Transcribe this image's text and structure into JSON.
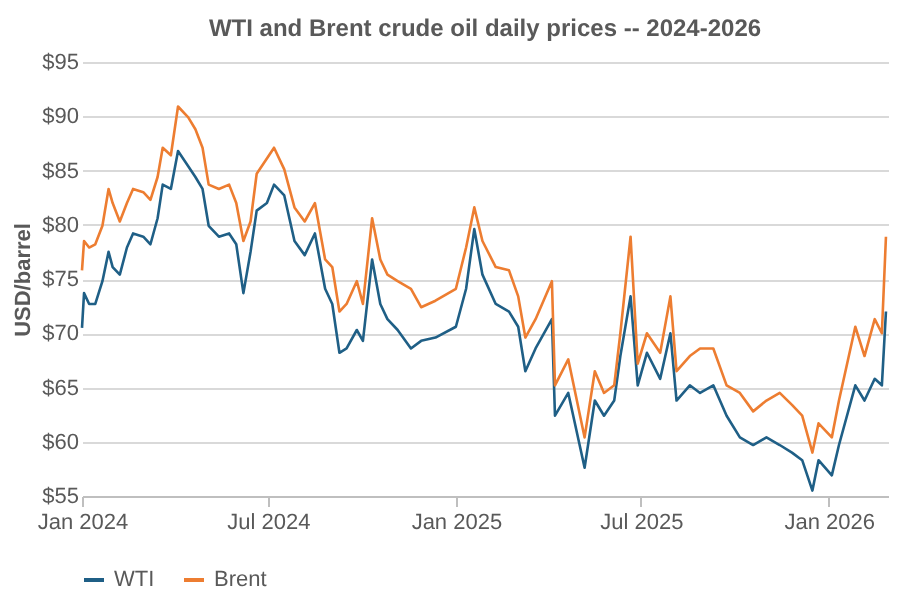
{
  "chart_data": {
    "type": "line",
    "title": "WTI and Brent crude oil daily prices -- 2024-2026",
    "ylabel": "USD/barrel",
    "x": [
      "2024-01-01",
      "2024-01-03",
      "2024-01-08",
      "2024-01-14",
      "2024-01-21",
      "2024-01-27",
      "2024-01-31",
      "2024-02-07",
      "2024-02-14",
      "2024-02-20",
      "2024-03-01",
      "2024-03-08",
      "2024-03-15",
      "2024-03-20",
      "2024-03-28",
      "2024-04-04",
      "2024-04-14",
      "2024-04-21",
      "2024-04-28",
      "2024-05-04",
      "2024-05-14",
      "2024-05-24",
      "2024-05-31",
      "2024-06-07",
      "2024-06-14",
      "2024-06-20",
      "2024-06-30",
      "2024-07-07",
      "2024-07-17",
      "2024-07-27",
      "2024-08-06",
      "2024-08-16",
      "2024-08-26",
      "2024-09-02",
      "2024-09-09",
      "2024-09-16",
      "2024-09-26",
      "2024-10-02",
      "2024-10-11",
      "2024-10-19",
      "2024-10-26",
      "2024-11-05",
      "2024-11-18",
      "2024-11-28",
      "2024-12-12",
      "2025-01-01",
      "2025-01-11",
      "2025-01-19",
      "2025-01-27",
      "2025-02-09",
      "2025-02-22",
      "2025-03-03",
      "2025-03-10",
      "2025-03-20",
      "2025-04-05",
      "2025-04-08",
      "2025-04-21",
      "2025-05-07",
      "2025-05-17",
      "2025-05-26",
      "2025-06-05",
      "2025-06-11",
      "2025-06-21",
      "2025-06-28",
      "2025-07-07",
      "2025-07-20",
      "2025-07-30",
      "2025-08-05",
      "2025-08-18",
      "2025-08-28",
      "2025-09-10",
      "2025-09-23",
      "2025-10-06",
      "2025-10-19",
      "2025-11-01",
      "2025-11-14",
      "2025-11-26",
      "2025-12-06",
      "2025-12-16",
      "2025-12-22",
      "2026-01-04",
      "2026-01-11",
      "2026-01-27",
      "2026-02-05",
      "2026-02-15",
      "2026-02-22",
      "2026-02-26"
    ],
    "series": [
      {
        "name": "WTI",
        "color": "#1f5f86",
        "values": [
          70.5,
          73.7,
          72.7,
          72.7,
          74.8,
          77.5,
          76.1,
          75.4,
          77.9,
          79.2,
          78.9,
          78.2,
          80.6,
          83.7,
          83.3,
          86.8,
          85.4,
          84.4,
          83.3,
          79.9,
          78.9,
          79.2,
          78.2,
          73.7,
          77.5,
          81.3,
          82,
          83.7,
          82.7,
          78.5,
          77.2,
          79.2,
          74.1,
          72.7,
          68.2,
          68.6,
          70.3,
          69.3,
          76.8,
          72.7,
          71.3,
          70.3,
          68.6,
          69.3,
          69.6,
          70.6,
          74.1,
          79.6,
          75.4,
          72.7,
          72,
          70.6,
          66.5,
          68.6,
          71.3,
          62.4,
          64.5,
          57.6,
          63.8,
          62.4,
          63.8,
          67.9,
          73.4,
          65.2,
          68.2,
          65.8,
          70,
          63.8,
          65.2,
          64.5,
          65.2,
          62.4,
          60.4,
          59.7,
          60.4,
          59.7,
          59,
          58.3,
          55.5,
          58.3,
          56.9,
          59.7,
          65.2,
          63.8,
          65.8,
          65.2,
          72
        ]
      },
      {
        "name": "Brent",
        "color": "#ed7d31",
        "values": [
          75.8,
          78.5,
          77.9,
          78.2,
          79.9,
          83.3,
          82,
          80.3,
          82,
          83.3,
          83,
          82.3,
          84.4,
          87.1,
          86.4,
          90.9,
          89.9,
          88.8,
          87.1,
          83.7,
          83.3,
          83.7,
          82,
          78.5,
          80.3,
          84.7,
          86.1,
          87.1,
          85.1,
          81.6,
          80.3,
          82,
          76.8,
          76.1,
          72,
          72.7,
          74.8,
          72.7,
          80.6,
          76.8,
          75.4,
          74.8,
          74.1,
          72.4,
          73,
          74.1,
          77.9,
          81.6,
          78.5,
          76.1,
          75.8,
          73.4,
          69.6,
          71.3,
          74.8,
          65.2,
          67.6,
          60.4,
          66.5,
          64.5,
          65.2,
          70,
          78.9,
          67.2,
          70,
          68.2,
          73.4,
          66.5,
          67.9,
          68.6,
          68.6,
          65.2,
          64.5,
          62.8,
          63.8,
          64.5,
          63.4,
          62.4,
          59,
          61.7,
          60.4,
          63.8,
          70.6,
          67.9,
          71.3,
          70,
          78.9
        ]
      }
    ],
    "xlim": [
      "2024-01-01",
      "2026-02-28"
    ],
    "xticks": [
      {
        "value": "2024-01-01",
        "label": "Jan 2024"
      },
      {
        "value": "2024-07-01",
        "label": "Jul 2024"
      },
      {
        "value": "2025-01-01",
        "label": "Jan 2025"
      },
      {
        "value": "2025-07-01",
        "label": "Jul 2025"
      },
      {
        "value": "2026-01-01",
        "label": "Jan 2026"
      }
    ],
    "ylim": [
      55,
      95
    ],
    "yticks": [
      {
        "value": 55,
        "label": "$55"
      },
      {
        "value": 60,
        "label": "$60"
      },
      {
        "value": 65,
        "label": "$65"
      },
      {
        "value": 70,
        "label": "$70"
      },
      {
        "value": 75,
        "label": "$75"
      },
      {
        "value": 80,
        "label": "$80"
      },
      {
        "value": 85,
        "label": "$85"
      },
      {
        "value": 90,
        "label": "$90"
      },
      {
        "value": 95,
        "label": "$95"
      }
    ],
    "grid": "y",
    "legend": "bottom",
    "marker": "none",
    "line_style": "solid"
  }
}
